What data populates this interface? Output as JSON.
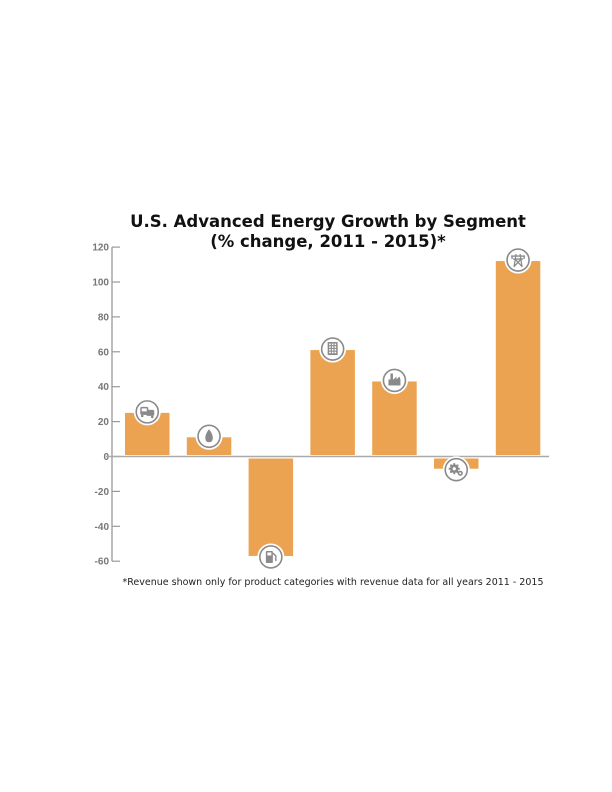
{
  "chart_data": {
    "type": "bar",
    "title": "U.S. Advanced Energy Growth by Segment",
    "subtitle": "(% change, 2011 - 2015)*",
    "xlabel": "",
    "ylabel": "",
    "ylim": [
      -60,
      120
    ],
    "yticks": [
      120,
      100,
      80,
      60,
      40,
      20,
      0,
      -20,
      -40,
      -60
    ],
    "grid": false,
    "categories": [
      "Transportation",
      "Fuel Production",
      "Fuel Delivery",
      "Building Efficiency",
      "Industry",
      "Electricity Generation (gears)",
      "Electricity Delivery & Management"
    ],
    "category_icons": [
      "vehicles-icon",
      "water-drop-icon",
      "fuel-pump-icon",
      "building-icon",
      "factory-icon",
      "gears-icon",
      "transmission-tower-icon"
    ],
    "values": [
      25,
      11,
      -57,
      61,
      43,
      -7,
      112
    ],
    "bar_color": "#EBA352",
    "footnote": "*Revenue shown only for product categories with revenue data for all years 2011 - 2015"
  },
  "colors": {
    "bar": "#EBA352",
    "axis": "#999999",
    "icon_ring": "#8a8a8a",
    "icon_glyph": "#8a8a8a"
  }
}
